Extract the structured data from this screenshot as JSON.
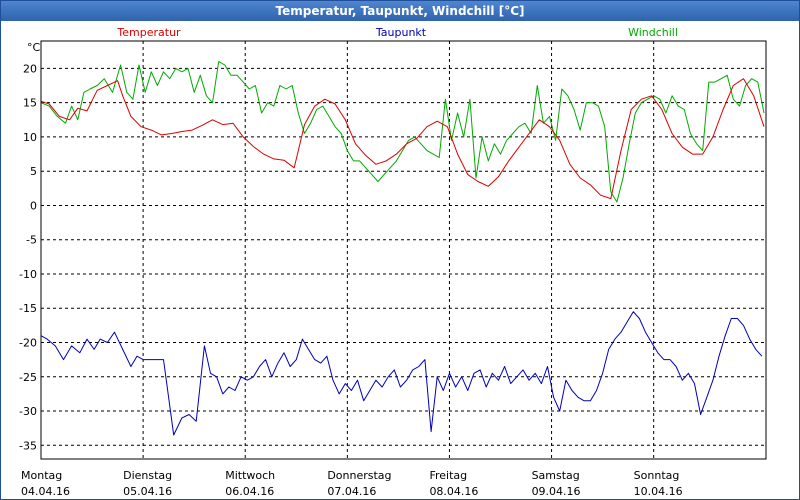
{
  "window": {
    "title": "Temperatur, Taupunkt, Windchill [°C]"
  },
  "chart_data": {
    "type": "line",
    "title": "Temperatur, Taupunkt, Windchill [°C]",
    "ylabel": "°C",
    "ylim": [
      -37,
      24
    ],
    "xlim": [
      0,
      7.1
    ],
    "yticks": [
      20,
      15,
      10,
      5,
      0,
      -5,
      -10,
      -15,
      -20,
      -25,
      -30,
      -35
    ],
    "grid": true,
    "xticks": [
      {
        "x": 0,
        "day": "Montag",
        "date": "04.04.16"
      },
      {
        "x": 1,
        "day": "Dienstag",
        "date": "05.04.16"
      },
      {
        "x": 2,
        "day": "Mittwoch",
        "date": "06.04.16"
      },
      {
        "x": 3,
        "day": "Donnerstag",
        "date": "07.04.16"
      },
      {
        "x": 4,
        "day": "Freitag",
        "date": "08.04.16"
      },
      {
        "x": 5,
        "day": "Samstag",
        "date": "09.04.16"
      },
      {
        "x": 6,
        "day": "Sonntag",
        "date": "10.04.16"
      }
    ],
    "series": [
      {
        "name": "Temperatur",
        "color": "#dd0000",
        "x": [
          0.0,
          0.08,
          0.18,
          0.28,
          0.36,
          0.45,
          0.55,
          0.65,
          0.75,
          0.8,
          0.88,
          0.98,
          1.08,
          1.18,
          1.28,
          1.38,
          1.48,
          1.58,
          1.68,
          1.78,
          1.88,
          1.98,
          2.08,
          2.18,
          2.28,
          2.38,
          2.48,
          2.58,
          2.68,
          2.78,
          2.88,
          2.98,
          3.08,
          3.18,
          3.28,
          3.38,
          3.48,
          3.58,
          3.68,
          3.78,
          3.88,
          3.98,
          4.08,
          4.18,
          4.28,
          4.38,
          4.48,
          4.58,
          4.68,
          4.78,
          4.88,
          4.98,
          5.08,
          5.18,
          5.28,
          5.38,
          5.48,
          5.58,
          5.68,
          5.78,
          5.88,
          5.98,
          6.08,
          6.18,
          6.28,
          6.38,
          6.48,
          6.58,
          6.68,
          6.78,
          6.88,
          6.98,
          7.08
        ],
        "values": [
          15.2,
          14.8,
          13.0,
          12.5,
          14.2,
          13.8,
          16.8,
          17.5,
          18.2,
          16.0,
          13.0,
          11.5,
          11.0,
          10.3,
          10.5,
          10.8,
          11.0,
          11.7,
          12.5,
          11.8,
          12.0,
          10.0,
          8.6,
          7.5,
          6.8,
          6.6,
          5.5,
          11.8,
          14.5,
          15.5,
          14.8,
          12.5,
          9.0,
          7.3,
          6.0,
          6.5,
          7.5,
          9.0,
          9.8,
          11.5,
          12.3,
          11.5,
          7.5,
          4.5,
          3.5,
          2.8,
          4.2,
          6.5,
          8.5,
          10.5,
          12.5,
          11.5,
          9.5,
          6.0,
          4.0,
          3.0,
          1.5,
          1.0,
          8.0,
          14.0,
          15.5,
          16.0,
          14.0,
          10.5,
          8.5,
          7.5,
          7.5,
          10.0,
          14.0,
          17.5,
          18.5,
          16.0,
          11.5
        ]
      },
      {
        "name": "Taupunkt",
        "color": "#0000bb",
        "x": [
          0.0,
          0.06,
          0.14,
          0.22,
          0.3,
          0.38,
          0.45,
          0.52,
          0.58,
          0.65,
          0.72,
          0.8,
          0.88,
          0.94,
          1.0,
          1.08,
          1.2,
          1.3,
          1.38,
          1.45,
          1.52,
          1.6,
          1.66,
          1.72,
          1.78,
          1.84,
          1.9,
          1.96,
          2.02,
          2.08,
          2.14,
          2.2,
          2.26,
          2.32,
          2.38,
          2.44,
          2.5,
          2.56,
          2.62,
          2.68,
          2.74,
          2.8,
          2.86,
          2.92,
          2.98,
          3.04,
          3.1,
          3.16,
          3.22,
          3.28,
          3.34,
          3.4,
          3.46,
          3.52,
          3.58,
          3.64,
          3.7,
          3.76,
          3.82,
          3.88,
          3.94,
          4.0,
          4.06,
          4.12,
          4.18,
          4.24,
          4.3,
          4.36,
          4.42,
          4.48,
          4.54,
          4.6,
          4.66,
          4.72,
          4.78,
          4.84,
          4.9,
          4.96,
          5.02,
          5.08,
          5.14,
          5.2,
          5.26,
          5.32,
          5.38,
          5.44,
          5.5,
          5.56,
          5.62,
          5.68,
          5.74,
          5.8,
          5.86,
          5.92,
          5.98,
          6.04,
          6.1,
          6.16,
          6.22,
          6.28,
          6.34,
          6.4,
          6.46,
          6.52,
          6.58,
          6.64,
          6.7,
          6.76,
          6.82,
          6.88,
          6.94,
          7.0,
          7.06
        ],
        "values": [
          -19.0,
          -19.5,
          -20.5,
          -22.5,
          -20.5,
          -21.5,
          -19.5,
          -21.0,
          -19.5,
          -20.0,
          -18.5,
          -21.0,
          -23.5,
          -22.0,
          -22.5,
          -22.5,
          -22.5,
          -33.5,
          -31.0,
          -30.5,
          -31.5,
          -20.5,
          -24.5,
          -25.0,
          -27.5,
          -26.5,
          -27.0,
          -25.0,
          -25.5,
          -25.0,
          -23.5,
          -22.5,
          -25.0,
          -23.0,
          -21.5,
          -23.5,
          -22.5,
          -19.5,
          -21.0,
          -22.5,
          -23.0,
          -22.0,
          -25.5,
          -27.5,
          -26.0,
          -27.0,
          -25.5,
          -28.5,
          -27.0,
          -25.5,
          -26.5,
          -25.0,
          -24.0,
          -26.5,
          -25.5,
          -24.0,
          -23.5,
          -22.5,
          -33.0,
          -25.0,
          -27.0,
          -24.5,
          -26.5,
          -25.0,
          -27.0,
          -24.5,
          -24.0,
          -26.5,
          -24.5,
          -25.5,
          -23.5,
          -26.0,
          -25.0,
          -24.0,
          -25.5,
          -24.5,
          -26.0,
          -23.5,
          -28.0,
          -30.0,
          -25.5,
          -27.0,
          -28.0,
          -28.5,
          -28.5,
          -27.0,
          -24.5,
          -21.0,
          -19.5,
          -18.5,
          -17.0,
          -15.5,
          -16.5,
          -18.5,
          -20.0,
          -21.5,
          -22.5,
          -22.5,
          -23.5,
          -25.5,
          -24.5,
          -26.0,
          -30.5,
          -28.0,
          -25.5,
          -22.0,
          -19.0,
          -16.5,
          -16.5,
          -17.5,
          -19.5,
          -21.0,
          -22.0
        ]
      },
      {
        "name": "Windchill",
        "color": "#00aa00",
        "x": [
          0.0,
          0.08,
          0.16,
          0.24,
          0.3,
          0.36,
          0.42,
          0.48,
          0.55,
          0.62,
          0.7,
          0.78,
          0.84,
          0.9,
          0.96,
          1.02,
          1.08,
          1.14,
          1.2,
          1.26,
          1.32,
          1.38,
          1.44,
          1.5,
          1.56,
          1.62,
          1.68,
          1.74,
          1.8,
          1.86,
          1.92,
          1.98,
          2.04,
          2.1,
          2.16,
          2.22,
          2.28,
          2.34,
          2.4,
          2.46,
          2.52,
          2.58,
          2.64,
          2.7,
          2.76,
          2.82,
          2.88,
          2.94,
          3.0,
          3.06,
          3.12,
          3.18,
          3.24,
          3.3,
          3.36,
          3.42,
          3.48,
          3.54,
          3.6,
          3.66,
          3.72,
          3.78,
          3.84,
          3.9,
          3.96,
          4.02,
          4.08,
          4.14,
          4.2,
          4.26,
          4.32,
          4.38,
          4.44,
          4.5,
          4.56,
          4.62,
          4.68,
          4.74,
          4.8,
          4.86,
          4.92,
          4.98,
          5.04,
          5.1,
          5.16,
          5.22,
          5.28,
          5.34,
          5.4,
          5.46,
          5.52,
          5.58,
          5.64,
          5.7,
          5.76,
          5.82,
          5.88,
          5.94,
          6.0,
          6.06,
          6.12,
          6.18,
          6.24,
          6.3,
          6.36,
          6.42,
          6.48,
          6.54,
          6.6,
          6.66,
          6.72,
          6.78,
          6.84,
          6.9,
          6.96,
          7.02,
          7.08
        ],
        "values": [
          15.0,
          14.5,
          13.0,
          12.0,
          14.5,
          12.5,
          16.5,
          17.0,
          17.5,
          18.5,
          16.5,
          20.5,
          16.5,
          15.5,
          20.5,
          16.5,
          19.5,
          17.5,
          19.5,
          18.5,
          20.0,
          19.5,
          20.0,
          16.5,
          19.0,
          16.0,
          15.0,
          21.0,
          20.5,
          19.0,
          19.0,
          18.0,
          17.0,
          17.5,
          13.5,
          15.0,
          14.5,
          17.5,
          17.0,
          17.5,
          13.5,
          10.5,
          12.0,
          14.0,
          14.5,
          13.0,
          11.5,
          10.5,
          8.0,
          6.5,
          6.5,
          5.5,
          4.5,
          3.5,
          4.5,
          5.5,
          6.5,
          8.0,
          9.5,
          10.0,
          9.0,
          8.0,
          7.5,
          7.0,
          15.5,
          9.5,
          13.5,
          10.0,
          15.5,
          4.0,
          10.0,
          6.5,
          9.0,
          7.5,
          9.5,
          10.5,
          11.5,
          12.0,
          10.5,
          17.5,
          12.0,
          13.0,
          9.5,
          17.0,
          16.0,
          14.0,
          11.0,
          15.0,
          15.0,
          14.5,
          11.5,
          2.0,
          0.5,
          4.0,
          9.0,
          13.5,
          15.0,
          15.5,
          16.0,
          15.5,
          13.5,
          16.0,
          14.5,
          14.0,
          10.5,
          9.0,
          8.0,
          18.0,
          18.0,
          18.5,
          19.0,
          15.5,
          14.5,
          17.5,
          18.5,
          18.0,
          13.5
        ]
      }
    ]
  }
}
